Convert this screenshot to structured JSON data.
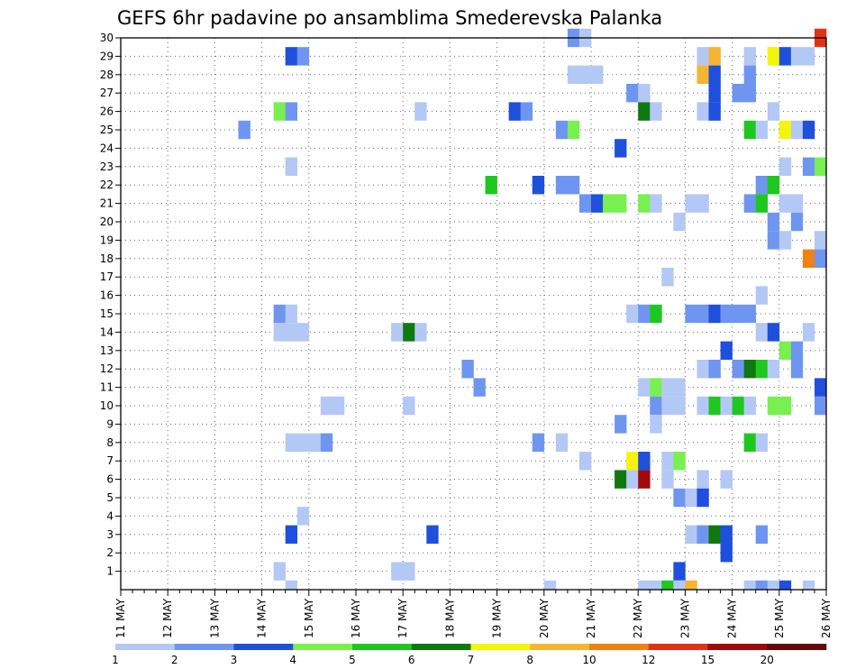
{
  "chart_data": {
    "type": "heatmap",
    "title": "GEFS 6hr padavine po ansamblima Smederevska Palanka",
    "xlabel": "",
    "ylabel": "",
    "x_ticks": [
      "11 MAY",
      "12 MAY",
      "13 MAY",
      "14 MAY",
      "15 MAY",
      "16 MAY",
      "17 MAY",
      "18 MAY",
      "19 MAY",
      "20 MAY",
      "21 MAY",
      "22 MAY",
      "23 MAY",
      "24 MAY",
      "25 MAY",
      "26 MAY"
    ],
    "y_ticks": [
      "1",
      "2",
      "3",
      "4",
      "5",
      "6",
      "7",
      "8",
      "9",
      "10",
      "11",
      "12",
      "13",
      "14",
      "15",
      "16",
      "17",
      "18",
      "19",
      "20",
      "21",
      "22",
      "23",
      "24",
      "25",
      "26",
      "27",
      "28",
      "29",
      "30"
    ],
    "x_unit": "6-hour steps from 11 MAY 00Z (60 steps)",
    "y_range": [
      0,
      30
    ],
    "grid": true,
    "legend": {
      "placement": "bottom",
      "labels": [
        "1",
        "2",
        "3",
        "4",
        "5",
        "6",
        "7",
        "8",
        "10",
        "12",
        "15",
        "20"
      ],
      "colors": [
        "#b4c8f5",
        "#6e96f0",
        "#1e50dc",
        "#78f050",
        "#1ec81e",
        "#0f780f",
        "#f5f50a",
        "#f5b432",
        "#f08214",
        "#e13214",
        "#a00a0a",
        "#640a0a"
      ]
    },
    "levels": [
      {
        "min": 1,
        "color": "#b4c8f5"
      },
      {
        "min": 2,
        "color": "#6e96f0"
      },
      {
        "min": 3,
        "color": "#1e50dc"
      },
      {
        "min": 4,
        "color": "#78f050"
      },
      {
        "min": 5,
        "color": "#1ec81e"
      },
      {
        "min": 6,
        "color": "#0f780f"
      },
      {
        "min": 7,
        "color": "#f5f50a"
      },
      {
        "min": 8,
        "color": "#f5b432"
      },
      {
        "min": 10,
        "color": "#f08214"
      },
      {
        "min": 12,
        "color": "#e13214"
      },
      {
        "min": 15,
        "color": "#a00a0a"
      },
      {
        "min": 20,
        "color": "#640a0a"
      }
    ],
    "cells": [
      [
        14,
        29,
        3
      ],
      [
        15,
        29,
        2
      ],
      [
        38,
        30,
        2
      ],
      [
        39,
        30,
        1
      ],
      [
        49,
        29,
        1
      ],
      [
        50,
        29,
        8
      ],
      [
        53,
        29,
        1
      ],
      [
        55,
        29,
        7
      ],
      [
        56,
        29,
        3
      ],
      [
        57,
        29,
        1
      ],
      [
        58,
        29,
        1
      ],
      [
        59,
        30,
        12
      ],
      [
        38,
        28,
        1
      ],
      [
        39,
        28,
        1
      ],
      [
        40,
        28,
        1
      ],
      [
        49,
        28,
        8
      ],
      [
        50,
        28,
        3
      ],
      [
        53,
        28,
        2
      ],
      [
        43,
        27,
        2
      ],
      [
        44,
        27,
        1
      ],
      [
        50,
        27,
        3
      ],
      [
        52,
        27,
        2
      ],
      [
        53,
        27,
        2
      ],
      [
        13,
        26,
        4
      ],
      [
        14,
        26,
        2
      ],
      [
        25,
        26,
        1
      ],
      [
        33,
        26,
        3
      ],
      [
        34,
        26,
        2
      ],
      [
        44,
        26,
        6
      ],
      [
        45,
        26,
        1
      ],
      [
        49,
        26,
        1
      ],
      [
        50,
        26,
        3
      ],
      [
        55,
        26,
        1
      ],
      [
        10,
        25,
        2
      ],
      [
        37,
        25,
        2
      ],
      [
        38,
        25,
        4
      ],
      [
        53,
        25,
        5
      ],
      [
        54,
        25,
        1
      ],
      [
        56,
        25,
        7
      ],
      [
        57,
        25,
        1
      ],
      [
        58,
        25,
        3
      ],
      [
        42,
        24,
        3
      ],
      [
        14,
        23,
        1
      ],
      [
        56,
        23,
        1
      ],
      [
        58,
        23,
        2
      ],
      [
        59,
        23,
        4
      ],
      [
        31,
        22,
        5
      ],
      [
        35,
        22,
        3
      ],
      [
        37,
        22,
        2
      ],
      [
        38,
        22,
        2
      ],
      [
        54,
        22,
        2
      ],
      [
        55,
        22,
        5
      ],
      [
        39,
        21,
        2
      ],
      [
        40,
        21,
        3
      ],
      [
        41,
        21,
        4
      ],
      [
        42,
        21,
        4
      ],
      [
        44,
        21,
        4
      ],
      [
        45,
        21,
        1
      ],
      [
        48,
        21,
        1
      ],
      [
        49,
        21,
        1
      ],
      [
        53,
        21,
        2
      ],
      [
        54,
        21,
        5
      ],
      [
        56,
        21,
        1
      ],
      [
        57,
        21,
        1
      ],
      [
        47,
        20,
        1
      ],
      [
        55,
        20,
        2
      ],
      [
        57,
        20,
        2
      ],
      [
        55,
        19,
        2
      ],
      [
        56,
        19,
        1
      ],
      [
        59,
        19,
        1
      ],
      [
        58,
        18,
        10
      ],
      [
        59,
        18,
        2
      ],
      [
        46,
        17,
        1
      ],
      [
        54,
        16,
        1
      ],
      [
        13,
        15,
        2
      ],
      [
        14,
        15,
        1
      ],
      [
        43,
        15,
        1
      ],
      [
        44,
        15,
        2
      ],
      [
        45,
        15,
        5
      ],
      [
        48,
        15,
        2
      ],
      [
        49,
        15,
        2
      ],
      [
        50,
        15,
        3
      ],
      [
        51,
        15,
        2
      ],
      [
        52,
        15,
        2
      ],
      [
        53,
        15,
        2
      ],
      [
        13,
        14,
        1
      ],
      [
        14,
        14,
        1
      ],
      [
        15,
        14,
        1
      ],
      [
        23,
        14,
        1
      ],
      [
        24,
        14,
        6
      ],
      [
        25,
        14,
        1
      ],
      [
        54,
        14,
        1
      ],
      [
        55,
        14,
        3
      ],
      [
        58,
        14,
        1
      ],
      [
        51,
        13,
        3
      ],
      [
        56,
        13,
        4
      ],
      [
        57,
        13,
        2
      ],
      [
        29,
        12,
        2
      ],
      [
        49,
        12,
        1
      ],
      [
        50,
        12,
        2
      ],
      [
        52,
        12,
        2
      ],
      [
        53,
        12,
        6
      ],
      [
        54,
        12,
        5
      ],
      [
        55,
        12,
        1
      ],
      [
        57,
        12,
        2
      ],
      [
        30,
        11,
        2
      ],
      [
        44,
        11,
        1
      ],
      [
        45,
        11,
        4
      ],
      [
        46,
        11,
        1
      ],
      [
        47,
        11,
        1
      ],
      [
        59,
        11,
        3
      ],
      [
        17,
        10,
        1
      ],
      [
        18,
        10,
        1
      ],
      [
        24,
        10,
        1
      ],
      [
        45,
        10,
        2
      ],
      [
        46,
        10,
        1
      ],
      [
        47,
        10,
        1
      ],
      [
        49,
        10,
        1
      ],
      [
        50,
        10,
        5
      ],
      [
        51,
        10,
        1
      ],
      [
        52,
        10,
        5
      ],
      [
        53,
        10,
        1
      ],
      [
        55,
        10,
        4
      ],
      [
        56,
        10,
        4
      ],
      [
        59,
        10,
        2
      ],
      [
        42,
        9,
        2
      ],
      [
        45,
        9,
        1
      ],
      [
        14,
        8,
        1
      ],
      [
        15,
        8,
        1
      ],
      [
        16,
        8,
        1
      ],
      [
        17,
        8,
        2
      ],
      [
        35,
        8,
        2
      ],
      [
        37,
        8,
        1
      ],
      [
        53,
        8,
        5
      ],
      [
        54,
        8,
        1
      ],
      [
        39,
        7,
        1
      ],
      [
        43,
        7,
        7
      ],
      [
        44,
        7,
        3
      ],
      [
        46,
        7,
        1
      ],
      [
        47,
        7,
        4
      ],
      [
        42,
        6,
        6
      ],
      [
        43,
        6,
        1
      ],
      [
        44,
        6,
        15
      ],
      [
        46,
        6,
        1
      ],
      [
        49,
        6,
        1
      ],
      [
        51,
        6,
        1
      ],
      [
        47,
        5,
        2
      ],
      [
        48,
        5,
        1
      ],
      [
        49,
        5,
        3
      ],
      [
        15,
        4,
        1
      ],
      [
        14,
        3,
        3
      ],
      [
        26,
        3,
        3
      ],
      [
        48,
        3,
        1
      ],
      [
        49,
        3,
        2
      ],
      [
        50,
        3,
        6
      ],
      [
        51,
        3,
        3
      ],
      [
        54,
        3,
        2
      ],
      [
        51,
        2,
        3
      ],
      [
        13,
        1,
        1
      ],
      [
        23,
        1,
        1
      ],
      [
        24,
        1,
        1
      ],
      [
        47,
        1,
        3
      ],
      [
        14,
        0,
        1
      ],
      [
        36,
        0,
        1
      ],
      [
        44,
        0,
        1
      ],
      [
        45,
        0,
        1
      ],
      [
        46,
        0,
        5
      ],
      [
        47,
        0,
        1
      ],
      [
        48,
        0,
        8
      ],
      [
        53,
        0,
        1
      ],
      [
        54,
        0,
        2
      ],
      [
        55,
        0,
        1
      ],
      [
        56,
        0,
        3
      ],
      [
        58,
        0,
        1
      ]
    ]
  }
}
